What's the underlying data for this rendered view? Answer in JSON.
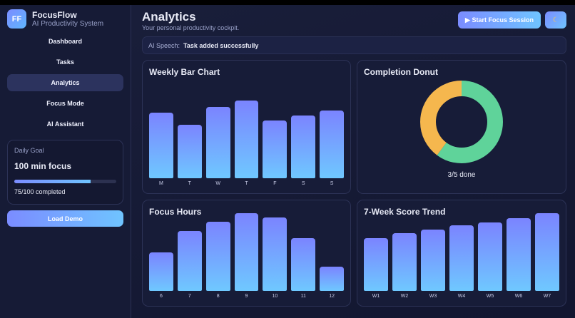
{
  "brand": {
    "initials": "FF",
    "name": "FocusFlow",
    "subtitle": "AI Productivity System"
  },
  "nav": [
    {
      "label": "Dashboard"
    },
    {
      "label": "Tasks"
    },
    {
      "label": "Analytics",
      "active": true
    },
    {
      "label": "Focus Mode"
    },
    {
      "label": "AI Assistant"
    }
  ],
  "goal": {
    "label": "Daily Goal",
    "title": "100 min focus",
    "progress": 75,
    "text": "75/100 completed"
  },
  "load_demo": "Load Demo",
  "header": {
    "title": "Analytics",
    "subtitle": "Your personal productivity cockpit.",
    "start_button": "▶ Start Focus Session",
    "theme_icon": "moon-icon"
  },
  "speech": {
    "label": "AI Speech:",
    "value": "Task added successfully"
  },
  "colors": {
    "accent": "#7b8cff",
    "accent2": "#6fc4ff",
    "donut_done": "#5fd39a",
    "donut_remaining": "#f5b74e"
  },
  "chart_data": [
    {
      "type": "bar",
      "title": "Weekly Bar Chart",
      "categories": [
        "M",
        "T",
        "W",
        "T",
        "F",
        "S",
        "S"
      ],
      "values": [
        92,
        75,
        100,
        109,
        81,
        88,
        95
      ]
    },
    {
      "type": "pie",
      "title": "Completion Donut",
      "values": [
        3,
        2
      ],
      "label": "3/5 done"
    },
    {
      "type": "bar",
      "title": "Focus Hours",
      "categories": [
        "6",
        "7",
        "8",
        "9",
        "10",
        "11",
        "12"
      ],
      "values": [
        54,
        84,
        97,
        109,
        103,
        74,
        34
      ]
    },
    {
      "type": "bar",
      "title": "7-Week Score Trend",
      "categories": [
        "W1",
        "W2",
        "W3",
        "W4",
        "W5",
        "W6",
        "W7"
      ],
      "values": [
        74,
        81,
        86,
        92,
        96,
        102,
        109
      ]
    }
  ]
}
